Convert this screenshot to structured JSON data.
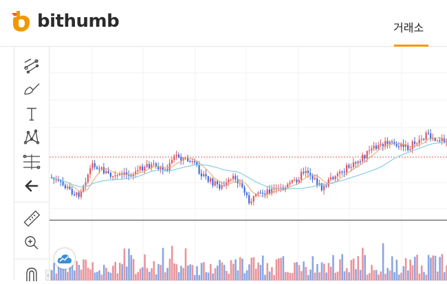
{
  "header": {
    "brand": "bithumb",
    "nav_tab": "거래소",
    "accent_color": "#f29700"
  },
  "toolbar": {
    "tools": [
      "trend-lines-icon",
      "brush-icon",
      "text-icon",
      "pattern-icon",
      "fib-retracement-icon",
      "arrow-left-icon",
      "ruler-icon",
      "zoom-in-icon",
      "magnet-icon"
    ]
  },
  "colors": {
    "up": "#e0565f",
    "down": "#3f6bd6",
    "ma_short": "#e8a36a",
    "ma_long": "#86cde0",
    "volume_up": "#e8939a",
    "volume_down": "#8ba5e0"
  }
}
